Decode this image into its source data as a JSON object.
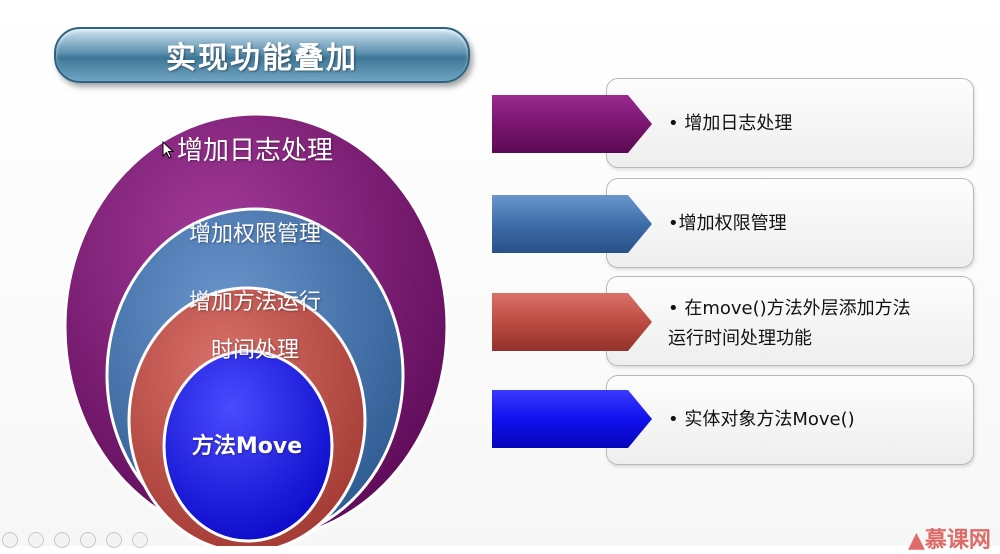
{
  "title": "实现功能叠加",
  "layers": [
    {
      "label": "增加日志处理",
      "color": "#7a1570"
    },
    {
      "label": "增加权限管理",
      "color": "#3e6eaa"
    },
    {
      "label_lines": [
        "增加方法运行",
        "时间处理"
      ],
      "color": "#bd4b42"
    },
    {
      "label": "方法Move",
      "color": "#1a1ae6"
    }
  ],
  "rows": [
    {
      "text": "• 增加日志处理",
      "color": "#7a1570"
    },
    {
      "text": "•增加权限管理",
      "color": "#3e6eaa"
    },
    {
      "text_lines": [
        "• 在move()方法外层添加方法",
        "运行时间处理功能"
      ],
      "color": "#bd4b42"
    },
    {
      "text": "• 实体对象方法Move()",
      "color": "#1010ee"
    }
  ],
  "logo": "慕课网"
}
